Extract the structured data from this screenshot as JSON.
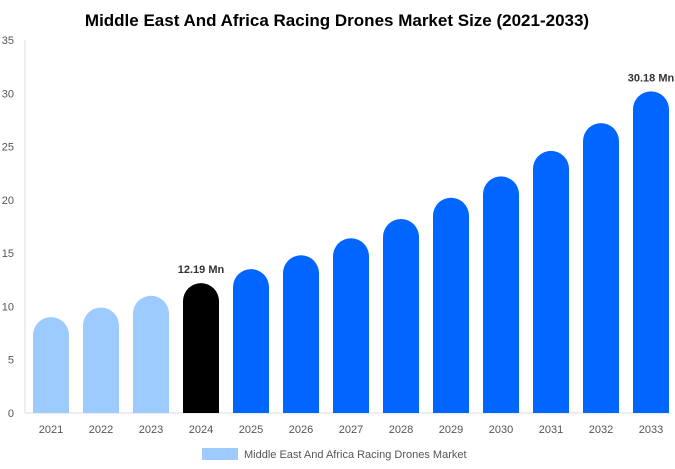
{
  "chart_data": {
    "type": "bar",
    "title": "Middle East And Africa Racing Drones Market Size (2021-2033)",
    "categories": [
      "2021",
      "2022",
      "2023",
      "2024",
      "2025",
      "2026",
      "2027",
      "2028",
      "2029",
      "2030",
      "2031",
      "2032",
      "2033"
    ],
    "series": [
      {
        "name": "Middle East And Africa Racing Drones Market",
        "values": [
          9.0,
          9.9,
          11.0,
          12.19,
          13.5,
          14.8,
          16.4,
          18.2,
          20.2,
          22.2,
          24.6,
          27.2,
          30.18
        ]
      }
    ],
    "data_labels": [
      {
        "category": "2024",
        "text": "12.19 Mn"
      },
      {
        "category": "2033",
        "text": "30.18 Mn"
      }
    ],
    "ylim": [
      0,
      35
    ],
    "yticks": [
      0,
      5,
      10,
      15,
      20,
      25,
      30,
      35
    ],
    "xlabel": "",
    "ylabel": "",
    "legend_position": "bottom",
    "colors": {
      "historic": "#9ecbff",
      "current": "#000000",
      "forecast": "#0066ff"
    }
  }
}
